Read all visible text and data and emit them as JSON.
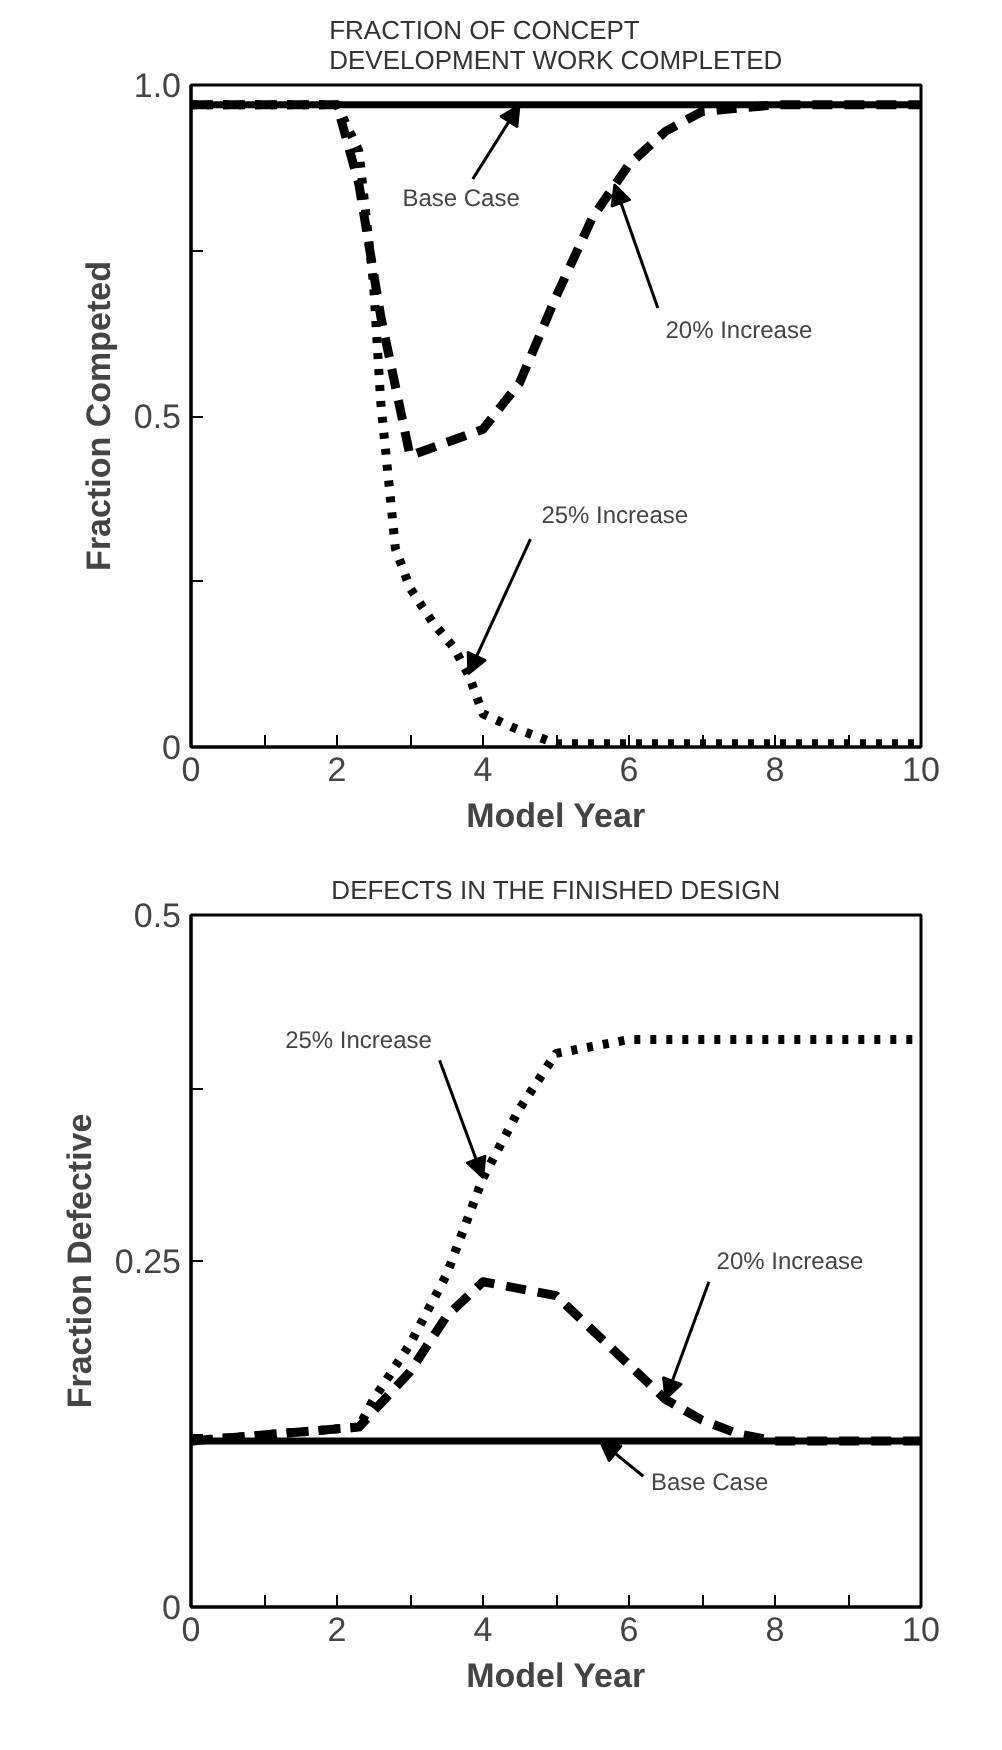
{
  "chart_data": [
    {
      "type": "line",
      "title": "FRACTION OF CONCEPT\nDEVELOPMENT WORK COMPLETED",
      "xlabel": "Model Year",
      "ylabel": "Fraction Competed",
      "xlim": [
        0,
        10
      ],
      "ylim": [
        0,
        1.0
      ],
      "xticks": [
        0,
        {
          "value": 1,
          "label": null
        },
        2,
        {
          "value": 3,
          "label": null
        },
        4,
        {
          "value": 5,
          "label": null
        },
        6,
        {
          "value": 7,
          "label": null
        },
        8,
        {
          "value": 9,
          "label": null
        },
        10
      ],
      "yticks": [
        0,
        {
          "value": 0.25,
          "label": null
        },
        0.5,
        {
          "value": 0.75,
          "label": null
        },
        {
          "value": 1.0,
          "label": "1.0"
        }
      ],
      "grid": false,
      "series": [
        {
          "color": "#000000",
          "line_style": "solid",
          "x": [
            0,
            10
          ],
          "values": [
            0.97,
            0.97
          ]
        },
        {
          "color": "#000000",
          "line_style": "dashed",
          "x": [
            0,
            2,
            2.3,
            2.6,
            3,
            3.5,
            4,
            4.5,
            5,
            5.5,
            6,
            6.5,
            7,
            8,
            10
          ],
          "values": [
            0.97,
            0.97,
            0.85,
            0.65,
            0.44,
            0.46,
            0.48,
            0.55,
            0.68,
            0.8,
            0.88,
            0.93,
            0.96,
            0.97,
            0.97
          ]
        },
        {
          "color": "#000000",
          "line_style": "dotted",
          "x": [
            0,
            2,
            2.3,
            2.5,
            2.6,
            2.8,
            3,
            3.3,
            3.6,
            3.8,
            4,
            4.4,
            5,
            10
          ],
          "values": [
            0.97,
            0.97,
            0.9,
            0.7,
            0.52,
            0.3,
            0.24,
            0.19,
            0.15,
            0.11,
            0.05,
            0.03,
            0.005,
            0.005
          ]
        }
      ],
      "annotations": [
        {
          "text": "Base Case",
          "x": 4.5,
          "y": 0.97
        },
        {
          "text": "20% Increase",
          "x": 5.8,
          "y": 0.85
        },
        {
          "text": "25% Increase",
          "x": 3.8,
          "y": 0.11
        }
      ]
    },
    {
      "type": "line",
      "title": "DEFECTS IN THE FINISHED DESIGN",
      "xlabel": "Model Year",
      "ylabel": "Fraction Defective",
      "xlim": [
        0,
        10
      ],
      "ylim": [
        0,
        0.5
      ],
      "xticks": [
        0,
        {
          "value": 1,
          "label": null
        },
        2,
        {
          "value": 3,
          "label": null
        },
        4,
        {
          "value": 5,
          "label": null
        },
        6,
        {
          "value": 7,
          "label": null
        },
        8,
        {
          "value": 9,
          "label": null
        },
        10
      ],
      "yticks": [
        0,
        {
          "value": 0.125,
          "label": null
        },
        0.25,
        {
          "value": 0.375,
          "label": null
        },
        0.5
      ],
      "grid": false,
      "series": [
        {
          "color": "#000000",
          "line_style": "solid",
          "x": [
            0,
            10
          ],
          "values": [
            0.12,
            0.12
          ]
        },
        {
          "color": "#000000",
          "line_style": "dashed",
          "x": [
            0,
            2.3,
            3,
            3.5,
            4,
            5,
            5.5,
            6,
            6.5,
            7,
            7.5,
            8,
            10
          ],
          "values": [
            0.12,
            0.13,
            0.17,
            0.21,
            0.235,
            0.225,
            0.2,
            0.175,
            0.15,
            0.135,
            0.125,
            0.12,
            0.12
          ]
        },
        {
          "color": "#000000",
          "line_style": "dotted",
          "x": [
            0,
            2.3,
            2.5,
            3,
            3.5,
            4,
            4.5,
            5,
            6,
            10
          ],
          "values": [
            0.12,
            0.13,
            0.15,
            0.19,
            0.24,
            0.31,
            0.36,
            0.4,
            0.41,
            0.41
          ]
        }
      ],
      "annotations": [
        {
          "text": "25% Increase",
          "x": 4,
          "y": 0.31
        },
        {
          "text": "20% Increase",
          "x": 6.5,
          "y": 0.15
        },
        {
          "text": "Base Case",
          "x": 5.6,
          "y": 0.12
        }
      ]
    }
  ]
}
